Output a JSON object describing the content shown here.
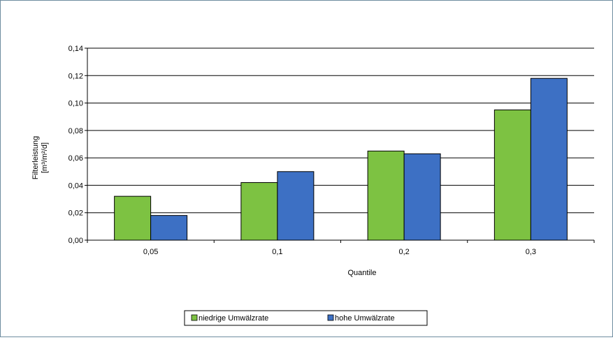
{
  "chart_data": {
    "type": "bar",
    "xlabel": "Quantile",
    "ylabel": [
      "Filterleistung",
      "[m³/m²/d]"
    ],
    "ylim": [
      0,
      0.14
    ],
    "ytick_step": 0.02,
    "yticks": [
      "0,00",
      "0,02",
      "0,04",
      "0,06",
      "0,08",
      "0,10",
      "0,12",
      "0,14"
    ],
    "categories": [
      "0,05",
      "0,1",
      "0,2",
      "0,3"
    ],
    "series": [
      {
        "name": "niedrige Umwälzrate",
        "color": "#7dc242",
        "values": [
          0.032,
          0.042,
          0.065,
          0.095
        ]
      },
      {
        "name": "hohe Umwälzrate",
        "color": "#3d70c4",
        "values": [
          0.018,
          0.05,
          0.063,
          0.118
        ]
      }
    ],
    "grid": true,
    "legend": "bottom"
  }
}
